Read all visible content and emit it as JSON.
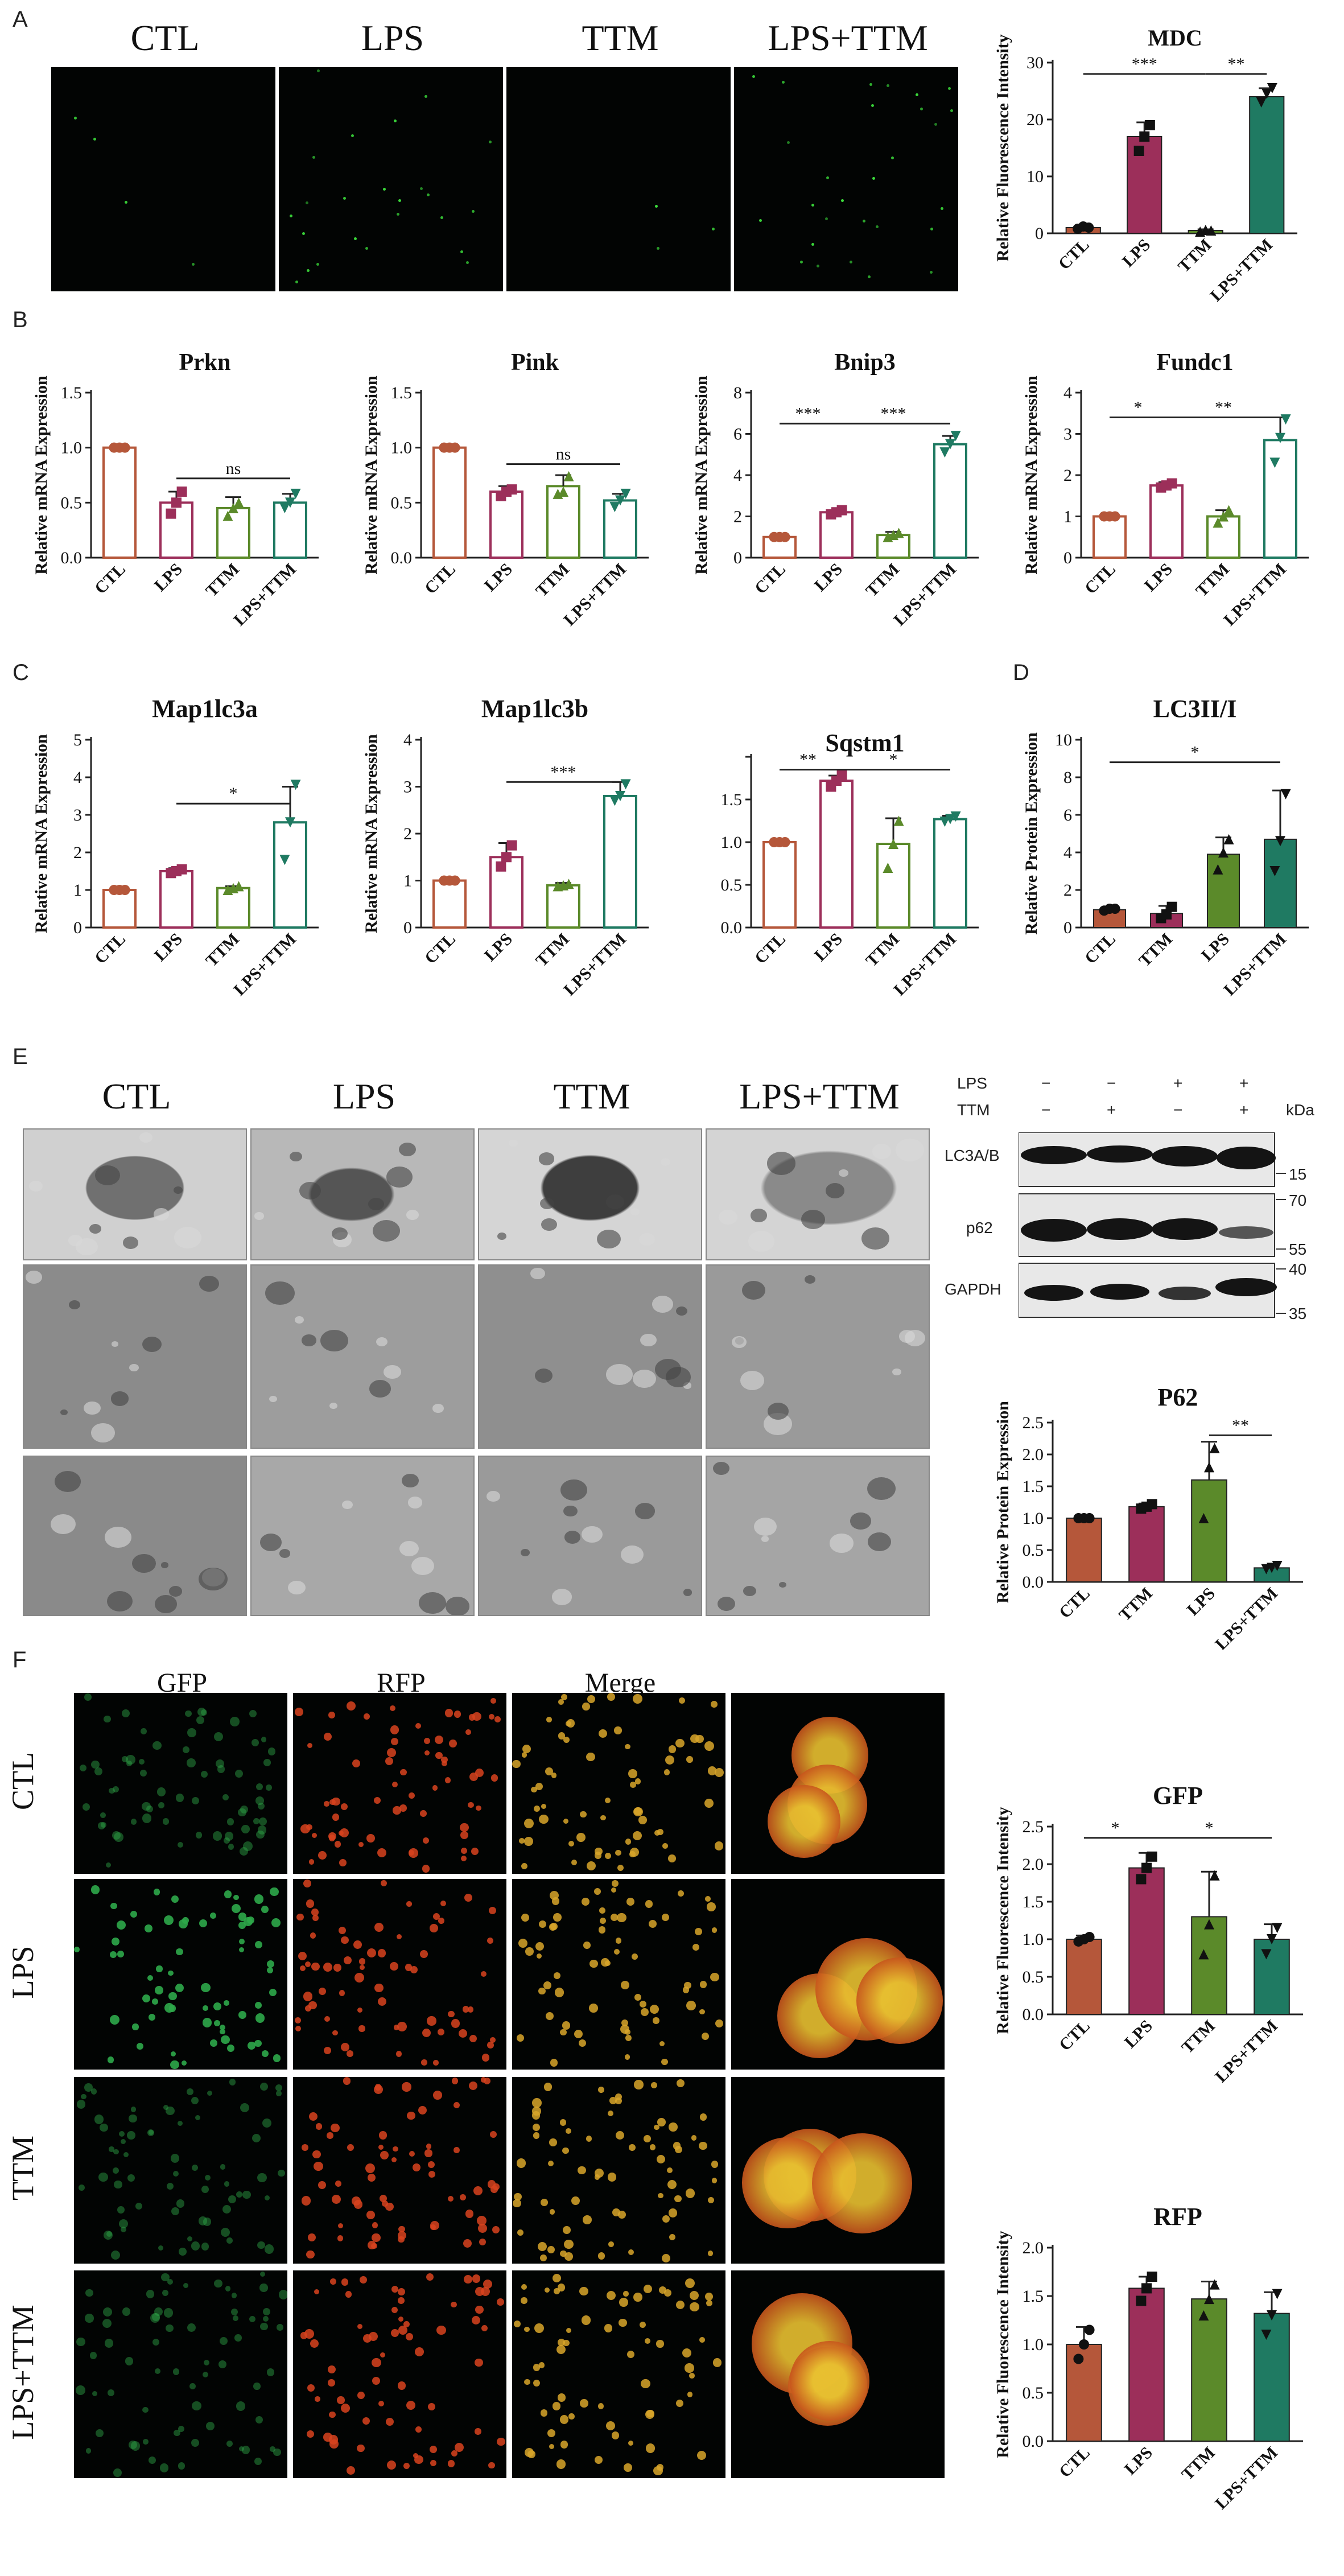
{
  "panel_letters": [
    "A",
    "B",
    "C",
    "D",
    "E",
    "F"
  ],
  "panelA": {
    "labels": [
      "CTL",
      "LPS",
      "TTM",
      "LPS+TTM"
    ]
  },
  "panelE": {
    "labels": [
      "CTL",
      "LPS",
      "TTM",
      "LPS+TTM"
    ]
  },
  "panelF": {
    "col_labels": [
      "GFP",
      "RFP",
      "Merge"
    ],
    "row_labels": [
      "CTL",
      "LPS",
      "TTM",
      "LPS+TTM"
    ]
  },
  "western": {
    "lps_label": "LPS",
    "ttm_label": "TTM",
    "lps_marks": [
      "−",
      "−",
      "+",
      "+"
    ],
    "ttm_marks": [
      "−",
      "+",
      "−",
      "+"
    ],
    "kda": "kDa",
    "bands": [
      "LC3A/B",
      "p62",
      "GAPDH"
    ],
    "markers": [
      "15",
      "70",
      "55",
      "40",
      "35"
    ]
  },
  "colors": {
    "CTL": "#b5573a",
    "LPS": "#9c2f5a",
    "TTM": "#5b8a2a",
    "LPSTTM": "#1f7a62"
  },
  "chart_data": [
    {
      "id": "mdc",
      "type": "bar",
      "style": "filled",
      "title": "MDC",
      "ylabel": "Relative Fluorescence Intensity",
      "categories": [
        "CTL",
        "LPS",
        "TTM",
        "LPS+TTM"
      ],
      "values": [
        1,
        17,
        0.5,
        24
      ],
      "errors": [
        0.3,
        2.5,
        0.2,
        1.5
      ],
      "ylim": [
        0,
        30
      ],
      "yticks": [
        0,
        10,
        20,
        30
      ],
      "tick_labels": [
        "0",
        "10",
        "20",
        "30"
      ],
      "markers": [
        "circle",
        "square",
        "triangle",
        "triangle-down"
      ],
      "points": [
        [
          0.8,
          1.2,
          1.0
        ],
        [
          14.5,
          17,
          19
        ],
        [
          0.3,
          0.6,
          0.5
        ],
        [
          23,
          24.5,
          25.5
        ]
      ],
      "sig": [
        {
          "from": 0,
          "to": 2,
          "text": "***",
          "y": 28
        },
        {
          "from": 2,
          "to": 3,
          "text": "**",
          "y": 28
        }
      ]
    },
    {
      "id": "prkn",
      "type": "bar",
      "style": "open",
      "title": "Prkn",
      "ylabel": "Relative mRNA Expression",
      "categories": [
        "CTL",
        "LPS",
        "TTM",
        "LPS+TTM"
      ],
      "values": [
        1,
        0.5,
        0.45,
        0.5
      ],
      "errors": [
        0,
        0.1,
        0.1,
        0.08
      ],
      "ylim": [
        0,
        1.5
      ],
      "yticks": [
        0,
        0.5,
        1.0,
        1.5
      ],
      "tick_labels": [
        "0.0",
        "0.5",
        "1.0",
        "1.5"
      ],
      "points": [
        [
          1,
          1,
          1
        ],
        [
          0.4,
          0.5,
          0.6
        ],
        [
          0.38,
          0.45,
          0.5
        ],
        [
          0.45,
          0.5,
          0.58
        ]
      ],
      "sig": [
        {
          "from": 1,
          "to": 3,
          "text": "ns",
          "y": 0.72
        }
      ]
    },
    {
      "id": "pink",
      "type": "bar",
      "style": "open",
      "title": "Pink",
      "ylabel": "Relative mRNA Expression",
      "categories": [
        "CTL",
        "LPS",
        "TTM",
        "LPS+TTM"
      ],
      "values": [
        1,
        0.6,
        0.65,
        0.52
      ],
      "errors": [
        0,
        0.05,
        0.1,
        0.06
      ],
      "ylim": [
        0,
        1.5
      ],
      "yticks": [
        0,
        0.5,
        1.0,
        1.5
      ],
      "tick_labels": [
        "0.0",
        "0.5",
        "1.0",
        "1.5"
      ],
      "points": [
        [
          1,
          1,
          1
        ],
        [
          0.56,
          0.6,
          0.62
        ],
        [
          0.58,
          0.6,
          0.74
        ],
        [
          0.46,
          0.52,
          0.58
        ]
      ],
      "sig": [
        {
          "from": 1,
          "to": 3,
          "text": "ns",
          "y": 0.85
        }
      ]
    },
    {
      "id": "bnip3",
      "type": "bar",
      "style": "open",
      "title": "Bnip3",
      "ylabel": "Relative mRNA Expression",
      "categories": [
        "CTL",
        "LPS",
        "TTM",
        "LPS+TTM"
      ],
      "values": [
        1,
        2.2,
        1.1,
        5.5
      ],
      "errors": [
        0,
        0.1,
        0.15,
        0.4
      ],
      "ylim": [
        0,
        8
      ],
      "yticks": [
        0,
        2,
        4,
        6,
        8
      ],
      "tick_labels": [
        "0",
        "2",
        "4",
        "6",
        "8"
      ],
      "points": [
        [
          1,
          1,
          1
        ],
        [
          2.1,
          2.2,
          2.3
        ],
        [
          1.0,
          1.1,
          1.2
        ],
        [
          5.1,
          5.5,
          5.9
        ]
      ],
      "sig": [
        {
          "from": 0,
          "to": 1,
          "text": "***",
          "y": 6.5
        },
        {
          "from": 1,
          "to": 3,
          "text": "***",
          "y": 6.5
        }
      ]
    },
    {
      "id": "fundc1",
      "type": "bar",
      "style": "open",
      "title": "Fundc1",
      "ylabel": "Relative mRNA Expression",
      "categories": [
        "CTL",
        "LPS",
        "TTM",
        "LPS+TTM"
      ],
      "values": [
        1,
        1.75,
        1.0,
        2.85
      ],
      "errors": [
        0,
        0.08,
        0.15,
        0.55
      ],
      "ylim": [
        0,
        4
      ],
      "yticks": [
        0,
        1,
        2,
        3,
        4
      ],
      "tick_labels": [
        "0",
        "1",
        "2",
        "3",
        "4"
      ],
      "points": [
        [
          1,
          1,
          1
        ],
        [
          1.7,
          1.75,
          1.8
        ],
        [
          0.85,
          1.0,
          1.15
        ],
        [
          2.3,
          2.9,
          3.35
        ]
      ],
      "sig": [
        {
          "from": 0,
          "to": 1,
          "text": "*",
          "y": 3.4
        },
        {
          "from": 1,
          "to": 3,
          "text": "**",
          "y": 3.4
        }
      ]
    },
    {
      "id": "map1lc3a",
      "type": "bar",
      "style": "open",
      "title": "Map1lc3a",
      "ylabel": "Relative mRNA Expression",
      "categories": [
        "CTL",
        "LPS",
        "TTM",
        "LPS+TTM"
      ],
      "values": [
        1,
        1.5,
        1.05,
        2.8
      ],
      "errors": [
        0,
        0.08,
        0.05,
        0.95
      ],
      "ylim": [
        0,
        5
      ],
      "yticks": [
        0,
        1,
        2,
        3,
        4,
        5
      ],
      "tick_labels": [
        "0",
        "1",
        "2",
        "3",
        "4",
        "5"
      ],
      "points": [
        [
          1,
          1,
          1
        ],
        [
          1.45,
          1.5,
          1.55
        ],
        [
          1.0,
          1.05,
          1.1
        ],
        [
          1.8,
          2.8,
          3.8
        ]
      ],
      "sig": [
        {
          "from": 1,
          "to": 3,
          "text": "*",
          "y": 3.3
        }
      ]
    },
    {
      "id": "map1lc3b",
      "type": "bar",
      "style": "open",
      "title": "Map1lc3b",
      "ylabel": "Relative mRNA Expression",
      "categories": [
        "CTL",
        "LPS",
        "TTM",
        "LPS+TTM"
      ],
      "values": [
        1,
        1.5,
        0.9,
        2.8
      ],
      "errors": [
        0,
        0.3,
        0.05,
        0.3
      ],
      "ylim": [
        0,
        4
      ],
      "yticks": [
        0,
        1,
        2,
        3,
        4
      ],
      "tick_labels": [
        "0",
        "1",
        "2",
        "3",
        "4"
      ],
      "points": [
        [
          1,
          1,
          1
        ],
        [
          1.3,
          1.5,
          1.75
        ],
        [
          0.88,
          0.9,
          0.93
        ],
        [
          2.7,
          2.8,
          3.05
        ]
      ],
      "sig": [
        {
          "from": 1,
          "to": 3,
          "text": "***",
          "y": 3.1
        }
      ]
    },
    {
      "id": "sqstm1",
      "type": "bar",
      "style": "open",
      "title": "Sqstm1",
      "ylabel": "",
      "categories": [
        "CTL",
        "LPS",
        "TTM",
        "LPS+TTM"
      ],
      "values": [
        1,
        1.72,
        0.98,
        1.27
      ],
      "errors": [
        0,
        0.06,
        0.3,
        0.04
      ],
      "ylim": [
        0,
        2.0
      ],
      "yticks": [
        0,
        0.5,
        1.0,
        1.5,
        2.0
      ],
      "tick_labels": [
        "0.0",
        "0.5",
        "1.0",
        "1.5",
        ""
      ],
      "points": [
        [
          1,
          1,
          1
        ],
        [
          1.65,
          1.72,
          1.78
        ],
        [
          0.7,
          0.98,
          1.25
        ],
        [
          1.24,
          1.27,
          1.3
        ]
      ],
      "sig": [
        {
          "from": 0,
          "to": 1,
          "text": "**",
          "y": 1.85
        },
        {
          "from": 1,
          "to": 3,
          "text": "*",
          "y": 1.85
        }
      ]
    },
    {
      "id": "lc3",
      "type": "bar",
      "style": "filled",
      "title": "LC3II/I",
      "ylabel": "Relative Protein Expression",
      "categories": [
        "CTL",
        "TTM",
        "LPS",
        "LPS+TTM"
      ],
      "values": [
        0.95,
        0.75,
        3.9,
        4.7
      ],
      "errors": [
        0.1,
        0.4,
        0.9,
        2.6
      ],
      "ylim": [
        0,
        10
      ],
      "yticks": [
        0,
        2,
        4,
        6,
        8,
        10
      ],
      "tick_labels": [
        "0",
        "2",
        "4",
        "6",
        "8",
        "10"
      ],
      "markers": [
        "circle",
        "square",
        "triangle",
        "triangle-down"
      ],
      "points": [
        [
          0.9,
          1.0,
          1.0
        ],
        [
          0.5,
          0.7,
          1.1
        ],
        [
          3.1,
          4.0,
          4.7
        ],
        [
          3.0,
          4.6,
          7.1
        ]
      ],
      "sig": [
        {
          "from": 0,
          "to": 3,
          "text": "*",
          "y": 8.8
        }
      ],
      "color_order": [
        "CTL",
        "LPS",
        "TTM",
        "LPSTTM"
      ]
    },
    {
      "id": "p62",
      "type": "bar",
      "style": "filled",
      "title": "P62",
      "ylabel": "Relative Protein Expression",
      "categories": [
        "CTL",
        "TTM",
        "LPS",
        "LPS+TTM"
      ],
      "values": [
        1,
        1.18,
        1.6,
        0.22
      ],
      "errors": [
        0,
        0.05,
        0.6,
        0.04
      ],
      "ylim": [
        0,
        2.5
      ],
      "yticks": [
        0,
        0.5,
        1.0,
        1.5,
        2.0,
        2.5
      ],
      "tick_labels": [
        "0.0",
        "0.5",
        "1.0",
        "1.5",
        "2.0",
        "2.5"
      ],
      "markers": [
        "circle",
        "square",
        "triangle",
        "triangle-down"
      ],
      "points": [
        [
          1,
          1,
          1
        ],
        [
          1.15,
          1.18,
          1.22
        ],
        [
          1.0,
          1.8,
          2.1
        ],
        [
          0.2,
          0.22,
          0.25
        ]
      ],
      "sig": [
        {
          "from": 2,
          "to": 3,
          "text": "**",
          "y": 2.3
        }
      ],
      "color_order": [
        "CTL",
        "LPS",
        "TTM",
        "LPSTTM"
      ]
    },
    {
      "id": "gfp",
      "type": "bar",
      "style": "filled",
      "title": "GFP",
      "ylabel": "Relative Fluorescence Intensity",
      "categories": [
        "CTL",
        "LPS",
        "TTM",
        "LPS+TTM"
      ],
      "values": [
        1,
        1.95,
        1.3,
        1.0
      ],
      "errors": [
        0.05,
        0.2,
        0.6,
        0.2
      ],
      "ylim": [
        0,
        2.5
      ],
      "yticks": [
        0,
        0.5,
        1.0,
        1.5,
        2.0,
        2.5
      ],
      "tick_labels": [
        "0.0",
        "0.5",
        "1.0",
        "1.5",
        "2.0",
        "2.5"
      ],
      "markers": [
        "circle",
        "square",
        "triangle",
        "triangle-down"
      ],
      "points": [
        [
          0.97,
          1.0,
          1.03
        ],
        [
          1.8,
          1.95,
          2.1
        ],
        [
          0.8,
          1.2,
          1.85
        ],
        [
          0.8,
          1.0,
          1.15
        ]
      ],
      "sig": [
        {
          "from": 0,
          "to": 1,
          "text": "*",
          "y": 2.35
        },
        {
          "from": 1,
          "to": 3,
          "text": "*",
          "y": 2.35
        }
      ]
    },
    {
      "id": "rfp",
      "type": "bar",
      "style": "filled",
      "title": "RFP",
      "ylabel": "Relative Fluorescence Intensity",
      "categories": [
        "CTL",
        "LPS",
        "TTM",
        "LPS+TTM"
      ],
      "values": [
        1,
        1.58,
        1.47,
        1.32
      ],
      "errors": [
        0.18,
        0.12,
        0.18,
        0.22
      ],
      "ylim": [
        0,
        2.0
      ],
      "yticks": [
        0,
        0.5,
        1.0,
        1.5,
        2.0
      ],
      "tick_labels": [
        "0.0",
        "0.5",
        "1.0",
        "1.5",
        "2.0"
      ],
      "markers": [
        "circle",
        "square",
        "triangle",
        "triangle-down"
      ],
      "points": [
        [
          0.85,
          1.0,
          1.15
        ],
        [
          1.45,
          1.58,
          1.7
        ],
        [
          1.3,
          1.47,
          1.62
        ],
        [
          1.1,
          1.3,
          1.52
        ]
      ],
      "sig": []
    }
  ]
}
